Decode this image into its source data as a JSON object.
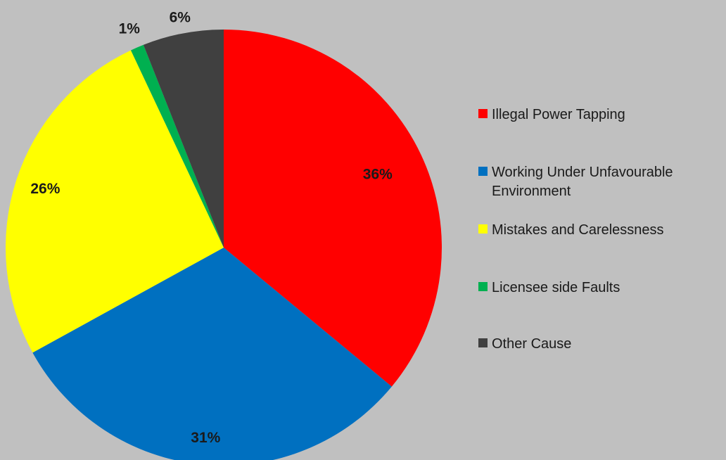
{
  "chart_data": {
    "type": "pie",
    "categories": [
      "Illegal Power Tapping",
      "Working Under Unfavourable Environment",
      "Mistakes and Carelessness",
      "Licensee side Faults",
      "Other Cause"
    ],
    "values": [
      36,
      31,
      26,
      1,
      6
    ],
    "value_labels": [
      "36%",
      "31%",
      "26%",
      "1%",
      "6%"
    ],
    "colors": [
      "#ff0000",
      "#0070c0",
      "#ffff00",
      "#00b050",
      "#404040"
    ],
    "start_angle": "12 o'clock",
    "direction": "clockwise",
    "legend_position": "right",
    "title": ""
  }
}
